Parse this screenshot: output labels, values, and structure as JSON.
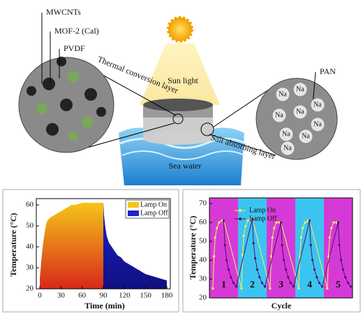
{
  "diagram": {
    "mwcnts": "MWCNTs",
    "mof": "MOF-2 (Cal)",
    "pvdf": "PVDF",
    "thermal": "Thermal conversion layer",
    "sun": "Sun light",
    "pan": "PAN",
    "na": "Na",
    "salt": "Salt absorbing layer",
    "sea": "Sea water"
  },
  "chart_data": [
    {
      "type": "area",
      "xlabel": "Time (min)",
      "ylabel": "Temperature (°C)",
      "xlim": [
        -5,
        185
      ],
      "ylim": [
        20,
        63
      ],
      "xticks": [
        0,
        30,
        60,
        90,
        120,
        150,
        180
      ],
      "yticks": [
        20,
        30,
        40,
        50,
        60
      ],
      "series": [
        {
          "name": "Lamp On",
          "color": "#f5c518",
          "x": [
            0,
            2,
            4,
            6,
            8,
            10,
            12,
            15,
            20,
            25,
            30,
            35,
            40,
            45,
            50,
            55,
            60,
            70,
            80,
            90
          ],
          "values": [
            25,
            33,
            40,
            45,
            49,
            52,
            53,
            54,
            55,
            56,
            57,
            58,
            59,
            60,
            60,
            60.5,
            61,
            61,
            61,
            61
          ]
        },
        {
          "name": "Lamp Off",
          "color": "#2222cc",
          "x": [
            90,
            91,
            93,
            95,
            98,
            102,
            106,
            110,
            115,
            120,
            130,
            140,
            150,
            160,
            170,
            180
          ],
          "values": [
            61,
            55,
            49,
            45,
            42,
            40,
            38,
            36,
            35,
            33,
            31,
            29,
            27,
            26,
            25,
            24
          ]
        }
      ]
    },
    {
      "type": "line",
      "xlabel": "Cycle",
      "ylabel": "Temperature (°C)",
      "xlim": [
        0,
        5
      ],
      "ylim": [
        20,
        73
      ],
      "yticks": [
        20,
        30,
        40,
        50,
        60,
        70
      ],
      "categories": [
        "1",
        "2",
        "3",
        "4",
        "5"
      ],
      "band_colors": [
        "#d63ad6",
        "#3cc4f0",
        "#d63ad6",
        "#3cc4f0",
        "#d63ad6"
      ],
      "series": [
        {
          "name": "Lamp On",
          "color": "#f2f25a",
          "x": [
            0.12,
            0.16,
            0.2,
            0.26,
            0.34,
            0.44,
            0.5,
            1.12,
            1.16,
            1.2,
            1.26,
            1.34,
            1.44,
            1.5,
            2.12,
            2.16,
            2.2,
            2.26,
            2.34,
            2.44,
            2.5,
            3.12,
            3.16,
            3.2,
            3.26,
            3.34,
            3.44,
            3.5,
            4.12,
            4.16,
            4.2,
            4.26,
            4.34,
            4.44,
            4.5
          ],
          "values": [
            25,
            42,
            52,
            57,
            60,
            61,
            61,
            25,
            43,
            53,
            58,
            61,
            62,
            62,
            25,
            42,
            52,
            57,
            60,
            60,
            60,
            25,
            42,
            52,
            57,
            60,
            61,
            61,
            25,
            42,
            52,
            57,
            60,
            60,
            60
          ]
        },
        {
          "name": "Lamp Off",
          "color": "#4a1070",
          "x": [
            0.5,
            0.54,
            0.6,
            0.67,
            0.75,
            0.84,
            0.94,
            1.5,
            1.54,
            1.6,
            1.67,
            1.75,
            1.84,
            1.94,
            2.5,
            2.54,
            2.6,
            2.67,
            2.75,
            2.84,
            2.94,
            3.5,
            3.54,
            3.6,
            3.67,
            3.75,
            3.84,
            3.94,
            4.5,
            4.54,
            4.6,
            4.67,
            4.75,
            4.84,
            4.94
          ],
          "values": [
            61,
            48,
            40,
            35,
            31,
            28,
            26,
            62,
            49,
            41,
            35,
            31,
            28,
            26,
            60,
            48,
            40,
            35,
            31,
            28,
            26,
            61,
            48,
            40,
            35,
            31,
            28,
            26,
            60,
            48,
            40,
            35,
            31,
            28,
            26
          ]
        }
      ]
    }
  ]
}
